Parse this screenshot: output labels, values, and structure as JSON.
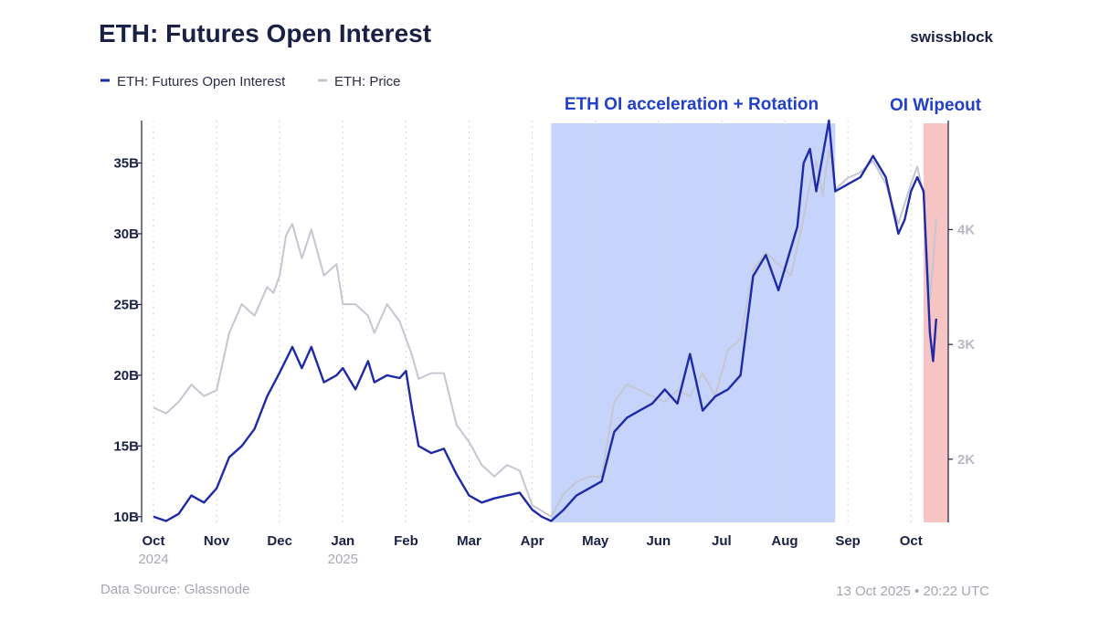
{
  "chart_data": {
    "type": "line",
    "title": "ETH: Futures Open Interest",
    "brand": "swissblock",
    "legend": [
      {
        "label": "ETH: Futures Open Interest",
        "color": "#1f2aa6"
      },
      {
        "label": "ETH: Price",
        "color": "#c4c6d2"
      }
    ],
    "left_axis": {
      "ticks": [
        10,
        15,
        20,
        25,
        30,
        35
      ],
      "tick_labels": [
        "10B",
        "15B",
        "20B",
        "25B",
        "30B",
        "35B"
      ],
      "range": [
        9.6,
        38.0
      ]
    },
    "right_axis": {
      "ticks": [
        2000,
        3000,
        4000
      ],
      "tick_labels": [
        "2K",
        "3K",
        "4K"
      ],
      "range": [
        1450,
        4950
      ]
    },
    "x_range": [
      0,
      12.8
    ],
    "month_ticks": [
      {
        "label": "Oct",
        "year": "2024",
        "pos": 0
      },
      {
        "label": "Nov",
        "year": "",
        "pos": 1
      },
      {
        "label": "Dec",
        "year": "",
        "pos": 2
      },
      {
        "label": "Jan",
        "year": "2025",
        "pos": 3
      },
      {
        "label": "Feb",
        "year": "",
        "pos": 4
      },
      {
        "label": "Mar",
        "year": "",
        "pos": 5
      },
      {
        "label": "Apr",
        "year": "",
        "pos": 6
      },
      {
        "label": "May",
        "year": "",
        "pos": 7
      },
      {
        "label": "Jun",
        "year": "",
        "pos": 8
      },
      {
        "label": "Jul",
        "year": "",
        "pos": 9
      },
      {
        "label": "Aug",
        "year": "",
        "pos": 10
      },
      {
        "label": "Sep",
        "year": "",
        "pos": 11
      },
      {
        "label": "Oct",
        "year": "",
        "pos": 12
      }
    ],
    "highlight_regions": [
      {
        "label": "ETH OI acceleration + Rotation",
        "start": 6.3,
        "end": 10.8,
        "color": "#c6d4fb"
      },
      {
        "label": "OI Wipeout",
        "start": 12.2,
        "end": 12.6,
        "color": "#f7c4c4"
      }
    ],
    "series": [
      {
        "name": "ETH: Futures Open Interest",
        "axis": "left",
        "color": "#1f2aa6",
        "x": [
          0,
          0.2,
          0.4,
          0.6,
          0.8,
          1.0,
          1.2,
          1.4,
          1.6,
          1.8,
          2.0,
          2.2,
          2.35,
          2.5,
          2.7,
          2.9,
          3.0,
          3.2,
          3.4,
          3.5,
          3.7,
          3.9,
          4.0,
          4.1,
          4.2,
          4.4,
          4.6,
          4.8,
          5.0,
          5.2,
          5.4,
          5.6,
          5.8,
          6.0,
          6.15,
          6.3,
          6.5,
          6.7,
          6.9,
          7.1,
          7.3,
          7.5,
          7.7,
          7.9,
          8.1,
          8.3,
          8.5,
          8.7,
          8.9,
          9.1,
          9.3,
          9.5,
          9.7,
          9.9,
          10.1,
          10.2,
          10.3,
          10.4,
          10.5,
          10.6,
          10.7,
          10.8,
          11.0,
          11.2,
          11.4,
          11.6,
          11.8,
          11.9,
          12.0,
          12.1,
          12.2,
          12.3,
          12.35,
          12.4
        ],
        "values": [
          10.0,
          9.7,
          10.2,
          11.5,
          11.0,
          12.0,
          14.2,
          15.0,
          16.2,
          18.5,
          20.2,
          22.0,
          20.5,
          22.0,
          19.5,
          20.0,
          20.5,
          19.0,
          21.0,
          19.5,
          20.0,
          19.8,
          20.3,
          17.5,
          15.0,
          14.5,
          14.8,
          13.0,
          11.5,
          11.0,
          11.3,
          11.5,
          11.7,
          10.5,
          10.0,
          9.7,
          10.5,
          11.5,
          12.0,
          12.5,
          16.0,
          17.0,
          17.5,
          18.0,
          19.0,
          18.0,
          21.5,
          17.5,
          18.5,
          19.0,
          20.0,
          27.0,
          28.5,
          26.0,
          29.0,
          30.5,
          35.0,
          36.0,
          33.0,
          35.5,
          38.0,
          33.0,
          33.5,
          34.0,
          35.5,
          34.0,
          30.0,
          31.0,
          33.0,
          34.0,
          33.0,
          23.0,
          21.0,
          24.0
        ]
      },
      {
        "name": "ETH: Price",
        "axis": "right",
        "color": "#c4c6d2",
        "x": [
          0,
          0.2,
          0.4,
          0.6,
          0.8,
          1.0,
          1.2,
          1.4,
          1.6,
          1.8,
          1.9,
          2.0,
          2.1,
          2.2,
          2.35,
          2.5,
          2.7,
          2.9,
          3.0,
          3.2,
          3.4,
          3.5,
          3.7,
          3.9,
          4.0,
          4.1,
          4.2,
          4.4,
          4.6,
          4.8,
          5.0,
          5.2,
          5.4,
          5.6,
          5.8,
          6.0,
          6.15,
          6.3,
          6.5,
          6.7,
          6.9,
          7.1,
          7.3,
          7.5,
          7.7,
          7.9,
          8.1,
          8.3,
          8.5,
          8.7,
          8.9,
          9.1,
          9.3,
          9.5,
          9.7,
          9.9,
          10.1,
          10.3,
          10.4,
          10.5,
          10.6,
          10.7,
          10.8,
          11.0,
          11.2,
          11.4,
          11.6,
          11.8,
          12.0,
          12.1,
          12.2,
          12.3,
          12.35,
          12.4
        ],
        "values": [
          2450,
          2400,
          2500,
          2650,
          2550,
          2600,
          3100,
          3350,
          3250,
          3500,
          3450,
          3600,
          3950,
          4050,
          3750,
          4000,
          3600,
          3700,
          3350,
          3350,
          3250,
          3100,
          3350,
          3200,
          3050,
          2900,
          2700,
          2750,
          2750,
          2300,
          2150,
          1950,
          1850,
          1950,
          1900,
          1600,
          1550,
          1500,
          1700,
          1800,
          1850,
          1850,
          2500,
          2650,
          2600,
          2550,
          2500,
          2600,
          2550,
          2750,
          2550,
          2950,
          3050,
          3650,
          3800,
          3700,
          3600,
          4100,
          4400,
          4600,
          4300,
          4700,
          4350,
          4450,
          4500,
          4600,
          4400,
          4050,
          4400,
          4550,
          4300,
          3400,
          3700,
          4100
        ]
      }
    ],
    "footer_left": "Data Source: Glassnode",
    "footer_right": "13 Oct 2025 • 20:22 UTC"
  }
}
